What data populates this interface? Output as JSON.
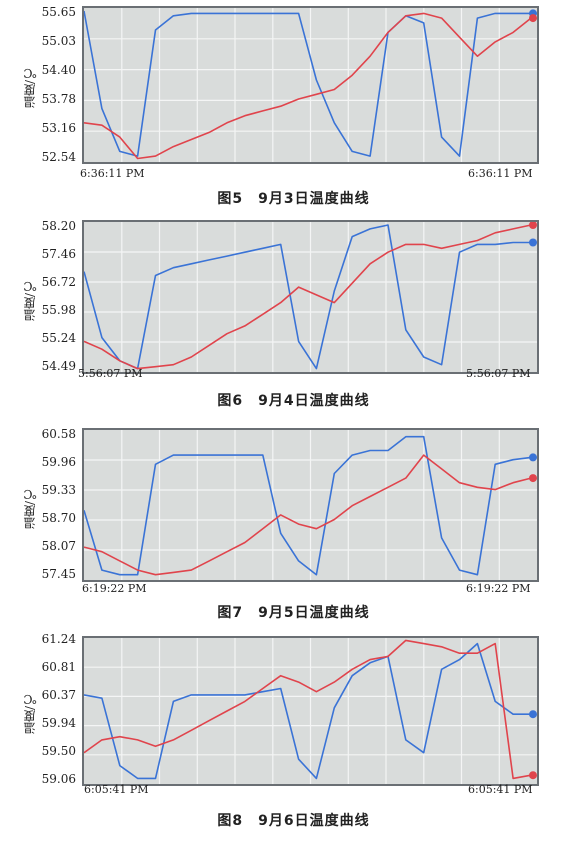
{
  "chart_data": [
    {
      "type": "line",
      "caption": "图5　9月3日温度曲线",
      "ylabel": "温度/℃",
      "yticks": [
        "55.65",
        "55.03",
        "54.40",
        "53.78",
        "53.16",
        "52.54"
      ],
      "ylim": [
        52.54,
        55.65
      ],
      "time_left": "6:36:11 PM",
      "time_right": "6:36:11 PM",
      "grid": true,
      "x": [
        0,
        4,
        8,
        12,
        16,
        20,
        24,
        28,
        32,
        36,
        40,
        44,
        48,
        52,
        56,
        60,
        64,
        68,
        72,
        76,
        80,
        84,
        88,
        92,
        96,
        100
      ],
      "series": [
        {
          "color": "#3a73d6",
          "values": [
            55.65,
            53.6,
            52.7,
            52.6,
            55.25,
            55.55,
            55.6,
            55.6,
            55.6,
            55.6,
            55.6,
            55.6,
            55.6,
            54.2,
            53.3,
            52.7,
            52.6,
            55.2,
            55.55,
            55.4,
            53.0,
            52.6,
            55.5,
            55.6,
            55.6,
            55.6
          ]
        },
        {
          "color": "#e0444c",
          "values": [
            53.3,
            53.25,
            53.0,
            52.55,
            52.6,
            52.8,
            52.95,
            53.1,
            53.3,
            53.45,
            53.55,
            53.65,
            53.8,
            53.9,
            54.0,
            54.3,
            54.7,
            55.2,
            55.55,
            55.6,
            55.5,
            55.1,
            54.7,
            55.0,
            55.2,
            55.5
          ]
        }
      ]
    },
    {
      "type": "line",
      "caption": "图6　9月4日温度曲线",
      "ylabel": "温度/℃",
      "yticks": [
        "58.20",
        "57.46",
        "56.72",
        "55.98",
        "55.24",
        "54.49"
      ],
      "ylim": [
        54.49,
        58.2
      ],
      "time_left": "5:56:07 PM",
      "time_right": "5:56:07 PM",
      "grid": true,
      "x": [
        0,
        4,
        8,
        12,
        16,
        20,
        24,
        28,
        32,
        36,
        40,
        44,
        48,
        52,
        56,
        60,
        64,
        68,
        72,
        76,
        80,
        84,
        88,
        92,
        96,
        100
      ],
      "series": [
        {
          "color": "#3a73d6",
          "values": [
            57.0,
            55.3,
            54.7,
            54.5,
            56.9,
            57.1,
            57.2,
            57.3,
            57.4,
            57.5,
            57.6,
            57.7,
            55.2,
            54.5,
            56.5,
            57.9,
            58.1,
            58.2,
            55.5,
            54.8,
            54.6,
            57.5,
            57.7,
            57.7,
            57.75,
            57.75
          ]
        },
        {
          "color": "#e0444c",
          "values": [
            55.2,
            55.0,
            54.7,
            54.5,
            54.55,
            54.6,
            54.8,
            55.1,
            55.4,
            55.6,
            55.9,
            56.2,
            56.6,
            56.4,
            56.2,
            56.7,
            57.2,
            57.5,
            57.7,
            57.7,
            57.6,
            57.7,
            57.8,
            58.0,
            58.1,
            58.2
          ]
        }
      ]
    },
    {
      "type": "line",
      "caption": "图7　9月5日温度曲线",
      "ylabel": "温度/℃",
      "yticks": [
        "60.58",
        "59.96",
        "59.33",
        "58.70",
        "58.07",
        "57.45"
      ],
      "ylim": [
        57.45,
        60.58
      ],
      "time_left": "6:19:22 PM",
      "time_right": "6:19:22 PM",
      "grid": true,
      "x": [
        0,
        4,
        8,
        12,
        16,
        20,
        24,
        28,
        32,
        36,
        40,
        44,
        48,
        52,
        56,
        60,
        64,
        68,
        72,
        76,
        80,
        84,
        88,
        92,
        96,
        100
      ],
      "series": [
        {
          "color": "#3a73d6",
          "values": [
            58.9,
            57.6,
            57.5,
            57.5,
            59.9,
            60.1,
            60.1,
            60.1,
            60.1,
            60.1,
            60.1,
            58.4,
            57.8,
            57.5,
            59.7,
            60.1,
            60.2,
            60.2,
            60.5,
            60.5,
            58.3,
            57.6,
            57.5,
            59.9,
            60.0,
            60.05
          ]
        },
        {
          "color": "#e0444c",
          "values": [
            58.1,
            58.0,
            57.8,
            57.6,
            57.5,
            57.55,
            57.6,
            57.8,
            58.0,
            58.2,
            58.5,
            58.8,
            58.6,
            58.5,
            58.7,
            59.0,
            59.2,
            59.4,
            59.6,
            60.1,
            59.8,
            59.5,
            59.4,
            59.35,
            59.5,
            59.6
          ]
        }
      ]
    },
    {
      "type": "line",
      "caption": "图8　9月6日温度曲线",
      "ylabel": "温度/℃",
      "yticks": [
        "61.24",
        "60.81",
        "60.37",
        "59.94",
        "59.50",
        "59.06"
      ],
      "ylim": [
        59.06,
        61.24
      ],
      "time_left": "6:05:41 PM",
      "time_right": "6:05:41 PM",
      "grid": true,
      "x": [
        0,
        4,
        8,
        12,
        16,
        20,
        24,
        28,
        32,
        36,
        40,
        44,
        48,
        52,
        56,
        60,
        64,
        68,
        72,
        76,
        80,
        84,
        88,
        92,
        96,
        100
      ],
      "series": [
        {
          "color": "#3a73d6",
          "values": [
            60.4,
            60.35,
            59.3,
            59.1,
            59.1,
            60.3,
            60.4,
            60.4,
            60.4,
            60.4,
            60.45,
            60.5,
            59.4,
            59.1,
            60.2,
            60.7,
            60.9,
            61.0,
            59.7,
            59.5,
            60.8,
            60.95,
            61.2,
            60.3,
            60.1,
            60.1
          ]
        },
        {
          "color": "#e0444c",
          "values": [
            59.5,
            59.7,
            59.75,
            59.7,
            59.6,
            59.7,
            59.85,
            60.0,
            60.15,
            60.3,
            60.5,
            60.7,
            60.6,
            60.45,
            60.6,
            60.8,
            60.95,
            61.0,
            61.25,
            61.2,
            61.15,
            61.05,
            61.05,
            61.2,
            59.1,
            59.15
          ]
        }
      ]
    }
  ]
}
